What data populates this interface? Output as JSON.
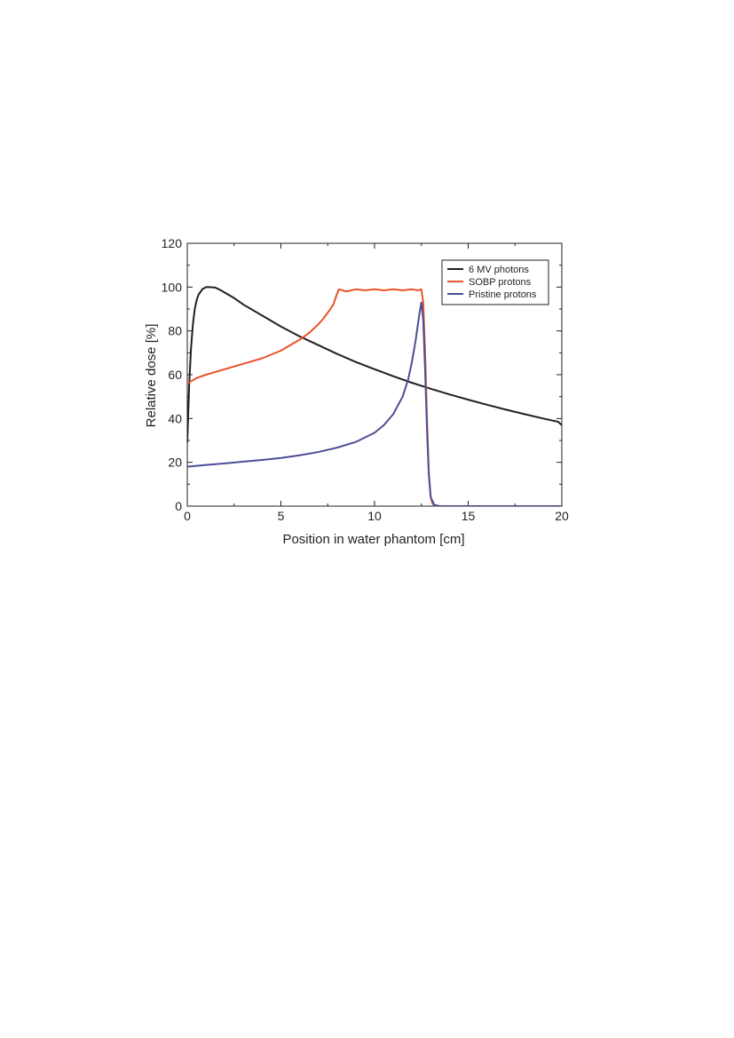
{
  "chart_data": {
    "type": "line",
    "xlabel": "Position in water phantom [cm]",
    "ylabel": "Relative dose [%]",
    "xlim": [
      0,
      20
    ],
    "ylim": [
      0,
      120
    ],
    "xticks": [
      0,
      5,
      10,
      15,
      20
    ],
    "yticks": [
      0,
      20,
      40,
      60,
      80,
      100,
      120
    ],
    "grid": false,
    "legend_position": "top-right",
    "colors": {
      "6 MV photons": "#231f20",
      "SOBP protons": "#e8532b",
      "Pristine protons": "#4d4d96"
    },
    "series": [
      {
        "name": "6 MV photons",
        "x": [
          0.0,
          0.1,
          0.2,
          0.3,
          0.4,
          0.5,
          0.6,
          0.8,
          1.0,
          1.2,
          1.5,
          1.8,
          2.0,
          2.5,
          3.0,
          4.0,
          5.0,
          6.0,
          7.0,
          8.0,
          9.0,
          10.0,
          11.0,
          12.0,
          13.0,
          14.0,
          15.0,
          16.0,
          17.0,
          18.0,
          19.0,
          19.8,
          20.0
        ],
        "y": [
          29,
          55,
          72,
          83,
          90,
          94,
          96.5,
          99,
          100,
          100,
          99.8,
          98.5,
          97.5,
          95,
          92,
          87,
          82,
          77.5,
          73.5,
          69.5,
          65.8,
          62.5,
          59.3,
          56.3,
          53.6,
          51,
          48.6,
          46.3,
          44.1,
          42,
          40,
          38.5,
          37
        ]
      },
      {
        "name": "SOBP protons",
        "x": [
          0.0,
          0.5,
          1.0,
          2.0,
          3.0,
          4.0,
          5.0,
          6.0,
          6.5,
          7.0,
          7.3,
          7.6,
          7.8,
          8.0,
          8.1,
          8.5,
          9.0,
          9.5,
          10.0,
          10.5,
          11.0,
          11.5,
          12.0,
          12.3,
          12.5,
          12.6,
          12.7,
          12.8,
          12.9,
          13.0,
          13.1,
          13.3
        ],
        "y": [
          56,
          58.5,
          60,
          62.5,
          65,
          67.5,
          71,
          76,
          79,
          83,
          86,
          89.5,
          92,
          97,
          99,
          98,
          99,
          98.5,
          99,
          98.5,
          99,
          98.5,
          99,
          98.5,
          99,
          93,
          70,
          40,
          15,
          4,
          1,
          0
        ]
      },
      {
        "name": "Pristine protons",
        "x": [
          0.0,
          1.0,
          2.0,
          3.0,
          4.0,
          5.0,
          6.0,
          7.0,
          8.0,
          9.0,
          10.0,
          10.5,
          11.0,
          11.5,
          11.8,
          12.0,
          12.2,
          12.4,
          12.5,
          12.6,
          12.7,
          12.8,
          12.9,
          13.0,
          13.2,
          13.5,
          20.0
        ],
        "y": [
          18,
          18.8,
          19.5,
          20.3,
          21.1,
          22,
          23.2,
          24.7,
          26.7,
          29.3,
          33.5,
          37,
          42,
          50,
          58,
          66,
          76,
          88,
          93,
          85,
          62,
          35,
          14,
          4,
          0.5,
          0,
          0
        ]
      }
    ]
  }
}
